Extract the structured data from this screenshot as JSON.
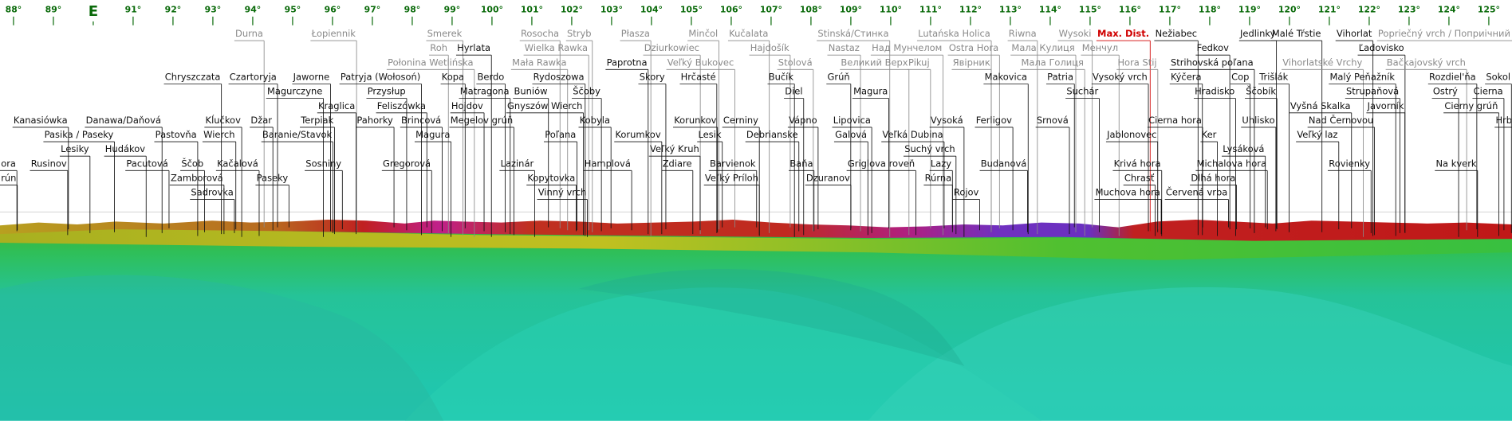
{
  "degrees": [
    "88°",
    "89°",
    "E",
    "91°",
    "92°",
    "93°",
    "94°",
    "95°",
    "96°",
    "97°",
    "98°",
    "99°",
    "100°",
    "101°",
    "102°",
    "103°",
    "104°",
    "105°",
    "106°",
    "107°",
    "108°",
    "109°",
    "110°",
    "111°",
    "112°",
    "113°",
    "114°",
    "115°",
    "116°",
    "117°",
    "118°",
    "119°",
    "120°",
    "121°",
    "122°",
    "123°",
    "124°",
    "125°"
  ],
  "peaks": [
    "Durna",
    "Łopiennik",
    "Smerek",
    "Rosocha",
    "Stryb",
    "Płasza",
    "Minčol",
    "Kučalata",
    "Stinská/Стинка",
    "Lutańska Holica",
    "Riwna",
    "Wysoki",
    "Max. Dist.",
    "Nežiabec",
    "Jedlinky",
    "Malé Tŕstie",
    "Vihorlat",
    "Popriečný vrch / Поприічний верх",
    "Roh",
    "Hyrlata",
    "Wielka Rawka",
    "Dziurkowiec",
    "Hajdošík",
    "Nastaz",
    "Над Мунчелом",
    "Ostra Hora",
    "Мала Кулиця",
    "Менчул",
    "Fedkov",
    "Ľadovisko",
    "Połonina Wetlińska",
    "Mała Rawka",
    "Paprotna",
    "Veľký Bukovec",
    "Stolová",
    "Великий Верх",
    "Pikuj",
    "Явірник",
    "Мала Голиця",
    "Hora Stij",
    "Strihovská poľana",
    "Vihorlatské Vrchy",
    "Bačkajovský vrch",
    "Chryszczata",
    "Czartoryja",
    "Jaworne",
    "Patryja (Wołosoń)",
    "Kopa",
    "Berdo",
    "Rydoszowa",
    "Skory",
    "Hrčasté",
    "Bučík",
    "Grúň",
    "Makovica",
    "Patria",
    "Vysoký vrch",
    "Kýčera",
    "Cop",
    "Trišlák",
    "Malý Peňažník",
    "Rozdiel'ňa",
    "Sokol",
    "Magurczyne",
    "Przysłup",
    "Matragona",
    "Buniów",
    "Ščoby",
    "Diel",
    "Magura",
    "Suchár",
    "Hradisko",
    "Ščobík",
    "Strupaňová",
    "Ostrý",
    "Cierna",
    "Kraglica",
    "Feliszówka",
    "Hojdov",
    "Gnyszów Wierch",
    "Vyšná Skalka",
    "Javorník",
    "Cierny grúň",
    "Kanasiówka",
    "Danawa/Daňová",
    "Kĺučkov",
    "Džar",
    "Terpiak",
    "Pahorky",
    "Brincová",
    "Megelov grúň",
    "Kobyla",
    "Korunkov",
    "Cerniny",
    "Vápno",
    "Lipovica",
    "Vysoká",
    "Ferligov",
    "Srnová",
    "Cierna hora",
    "Uhlisko",
    "Nad Černovou",
    "Hrb",
    "Pasika / Paseky",
    "Pastovňa",
    "Wierch",
    "Baranie/Stavok",
    "Magura",
    "Poľana",
    "Korumkov",
    "Lesik",
    "Debrianske",
    "Galová",
    "Veľká Dubina",
    "Jablonovec",
    "Ker",
    "Veľký laz",
    "Lesiky",
    "Hudákov",
    "Veľký Kruh",
    "Suchý vrch",
    "Lysáková",
    "ora",
    "Rusinov",
    "Pacutová",
    "Ščob",
    "Kačalová",
    "Sosniny",
    "Gregorová",
    "Lazinár",
    "Hamplová",
    "Zdiare",
    "Barvienok",
    "Baňa",
    "Griglova roveň",
    "Lazy",
    "Budanová",
    "Krivá hora",
    "Michalova hora",
    "Rovienky",
    "Na kverk",
    "rún",
    "Zamborová",
    "Paseky",
    "Kopytovka",
    "Veľký Príloh",
    "Dzuranov",
    "Rúrna",
    "Chrasť",
    "Dlhá hora",
    "Sadrovka",
    "Vinný vrch",
    "Rojov",
    "Muchova hora",
    "Červená vrba"
  ]
}
